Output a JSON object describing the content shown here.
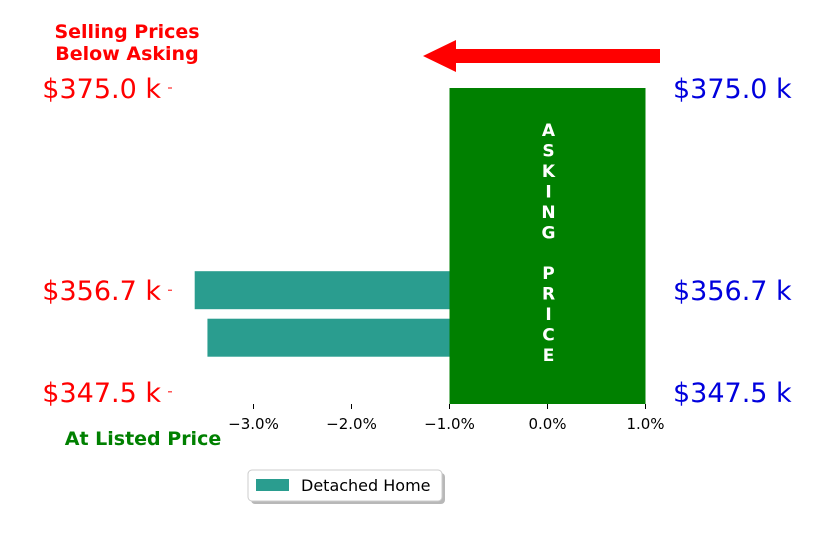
{
  "chart_data": {
    "type": "bar",
    "orientation": "horizontal",
    "top_note": [
      "Selling Prices",
      "Below Asking"
    ],
    "bottom_note": "At Listed Price",
    "asking_label": "ASKING PRICE",
    "x_ticks": [
      -3.0,
      -2.0,
      -1.0,
      0.0,
      1.0
    ],
    "x_tick_labels": [
      "−3.0%",
      "−2.0%",
      "−1.0%",
      "0.0%",
      "1.0%"
    ],
    "xlim": [
      -3.9,
      1.0
    ],
    "ylim": [
      346.4,
      375.0
    ],
    "y_ticks": [
      347.5,
      356.7,
      375.0
    ],
    "y_tick_labels_left": [
      "$347.5 k",
      "$356.7 k",
      "$375.0 k"
    ],
    "y_tick_labels_right": [
      "$347.5 k",
      "$356.7 k",
      "$375.0 k"
    ],
    "asking_band": {
      "x": [
        -1.0,
        1.0
      ],
      "y": [
        346.4,
        375.0
      ],
      "color": "#008000"
    },
    "series": [
      {
        "name": "Detached Home",
        "color": "#2a9d8f",
        "bars": [
          {
            "y": 356.7,
            "value": -3.6
          },
          {
            "y": 352.4,
            "value": -3.47
          }
        ]
      }
    ],
    "arrow_color": "#ff0000",
    "left_label_color": "#ff0000",
    "right_label_color": "#0000dd",
    "legend_position": "bottom-center"
  }
}
